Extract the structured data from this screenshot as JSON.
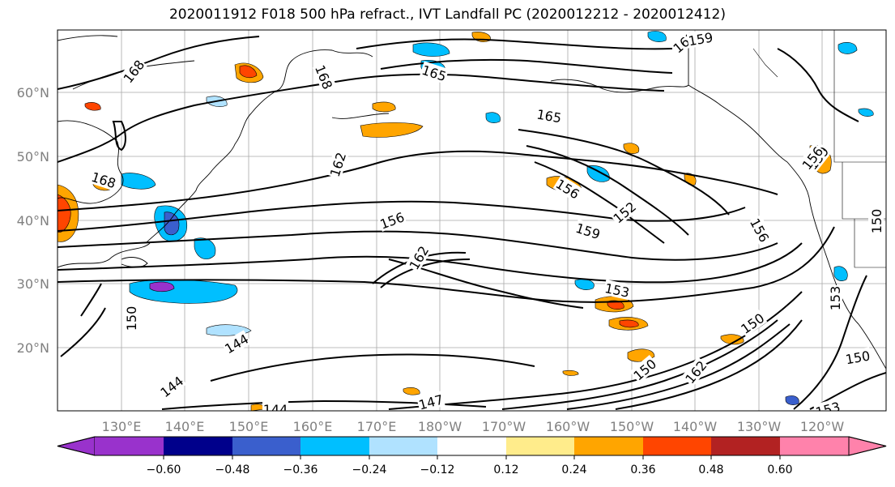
{
  "title": "2020011912 F018 500 hPa refract., IVT Landfall PC (2020012212 - 2020012412)",
  "map": {
    "lon_labels": [
      "130°E",
      "140°E",
      "150°E",
      "160°E",
      "170°E",
      "180°W",
      "170°W",
      "160°W",
      "150°W",
      "140°W",
      "130°W",
      "120°W"
    ],
    "lat_labels": [
      "20°N",
      "30°N",
      "40°N",
      "50°N",
      "60°N"
    ],
    "contour_labels": [
      "168",
      "168",
      "168",
      "165",
      "165",
      "162",
      "162",
      "156",
      "156",
      "159",
      "152",
      "159",
      "153",
      "150",
      "150",
      "150",
      "150",
      "162",
      "159",
      "156",
      "153",
      "150",
      "144",
      "144",
      "144",
      "147",
      "156",
      "162",
      "153"
    ]
  },
  "colorbar": {
    "colors": [
      "#9932cc",
      "#00008b",
      "#3a5fcd",
      "#00bfff",
      "#b0e2ff",
      "#ffffff",
      "#ffec8b",
      "#ffa500",
      "#ff4500",
      "#b22222",
      "#ff82ab"
    ],
    "tick_labels": [
      "−0.60",
      "−0.48",
      "−0.36",
      "−0.24",
      "−0.12",
      "0.12",
      "0.24",
      "0.36",
      "0.48",
      "0.60"
    ]
  }
}
